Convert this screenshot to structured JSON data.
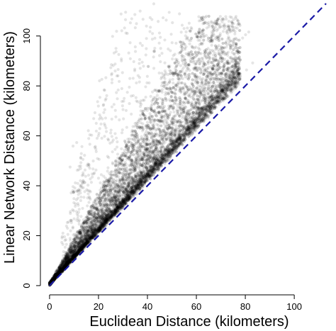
{
  "chart_data": {
    "type": "scatter",
    "title": "",
    "xlabel": "Euclidean Distance (kilometers)",
    "ylabel": "Linear Network Distance (kilometers)",
    "xlim": [
      -2,
      113
    ],
    "ylim": [
      -2,
      113
    ],
    "x_ticks": [
      0,
      20,
      40,
      60,
      80,
      100
    ],
    "y_ticks": [
      0,
      20,
      40,
      60,
      80,
      100
    ],
    "grid": false,
    "legend": "none",
    "point_color": "#000000",
    "point_opacity": 0.1,
    "reference_line": {
      "label": "y = x",
      "color": "#1a1aa6",
      "style": "dashed",
      "from": [
        0,
        0
      ],
      "to": [
        113,
        113
      ]
    },
    "series": [
      {
        "points": [
          [
            0.5,
            0.8
          ],
          [
            1.2,
            1.6
          ],
          [
            2.0,
            2.5
          ],
          [
            3.1,
            4.0
          ],
          [
            4.0,
            5.2
          ],
          [
            5.0,
            6.1
          ],
          [
            6.2,
            7.9
          ],
          [
            7.0,
            9.5
          ],
          [
            8.3,
            10.2
          ],
          [
            9.1,
            12.0
          ],
          [
            10.0,
            12.8
          ],
          [
            11.5,
            14.6
          ],
          [
            12.2,
            16.8
          ],
          [
            13.8,
            17.5
          ],
          [
            14.5,
            19.9
          ],
          [
            15.6,
            20.4
          ],
          [
            16.3,
            22.8
          ],
          [
            17.9,
            23.1
          ],
          [
            18.4,
            25.6
          ],
          [
            19.7,
            26.2
          ],
          [
            20.3,
            27.5
          ],
          [
            21.5,
            28.9
          ],
          [
            22.1,
            31.2
          ],
          [
            23.6,
            31.8
          ],
          [
            24.2,
            34.1
          ],
          [
            25.5,
            34.9
          ],
          [
            26.1,
            36.8
          ],
          [
            27.8,
            37.5
          ],
          [
            28.3,
            39.9
          ],
          [
            29.6,
            40.1
          ],
          [
            30.2,
            42.0
          ],
          [
            31.4,
            43.6
          ],
          [
            32.7,
            44.2
          ],
          [
            33.1,
            46.5
          ],
          [
            34.8,
            47.1
          ],
          [
            35.2,
            49.0
          ],
          [
            36.6,
            49.8
          ],
          [
            37.3,
            51.9
          ],
          [
            38.9,
            52.4
          ],
          [
            39.5,
            54.3
          ],
          [
            40.1,
            53.6
          ],
          [
            41.7,
            55.4
          ],
          [
            42.3,
            57.2
          ],
          [
            43.9,
            58.1
          ],
          [
            44.6,
            60.0
          ],
          [
            45.2,
            61.3
          ],
          [
            46.8,
            62.2
          ],
          [
            47.4,
            63.9
          ],
          [
            48.1,
            64.8
          ],
          [
            49.7,
            66.1
          ],
          [
            50.3,
            66.9
          ],
          [
            51.6,
            68.3
          ],
          [
            52.2,
            69.8
          ],
          [
            53.9,
            70.4
          ],
          [
            54.5,
            71.9
          ],
          [
            55.1,
            73.0
          ],
          [
            56.7,
            74.1
          ],
          [
            57.3,
            75.8
          ],
          [
            58.8,
            76.3
          ],
          [
            59.4,
            78.0
          ],
          [
            60.2,
            78.9
          ],
          [
            61.6,
            80.1
          ],
          [
            62.3,
            81.4
          ],
          [
            63.8,
            82.6
          ],
          [
            64.4,
            84.0
          ],
          [
            65.9,
            85.2
          ],
          [
            66.5,
            86.3
          ],
          [
            67.1,
            87.9
          ],
          [
            68.6,
            88.5
          ],
          [
            69.3,
            90.1
          ],
          [
            70.4,
            91.0
          ],
          [
            71.8,
            92.6
          ],
          [
            72.5,
            93.1
          ],
          [
            73.9,
            94.8
          ],
          [
            75.0,
            96.0
          ],
          [
            76.3,
            96.9
          ],
          [
            77.6,
            98.4
          ],
          [
            78.9,
            99.2
          ],
          [
            80.1,
            100.5
          ],
          [
            81.4,
            101.6
          ],
          [
            3.0,
            3.6
          ],
          [
            5.5,
            6.5
          ],
          [
            8.0,
            9.2
          ],
          [
            10.5,
            11.9
          ],
          [
            13.0,
            14.6
          ],
          [
            15.5,
            17.2
          ],
          [
            18.0,
            20.1
          ],
          [
            20.5,
            22.6
          ],
          [
            23.0,
            25.4
          ],
          [
            25.5,
            28.0
          ],
          [
            28.0,
            30.6
          ],
          [
            30.5,
            33.3
          ],
          [
            33.0,
            35.9
          ],
          [
            35.5,
            38.6
          ],
          [
            38.0,
            41.1
          ],
          [
            40.5,
            43.9
          ],
          [
            43.0,
            46.5
          ],
          [
            45.5,
            49.1
          ],
          [
            48.0,
            51.9
          ],
          [
            50.5,
            54.5
          ],
          [
            53.0,
            57.2
          ],
          [
            55.5,
            59.8
          ],
          [
            58.0,
            62.6
          ],
          [
            60.5,
            65.1
          ],
          [
            63.0,
            67.9
          ],
          [
            65.5,
            70.5
          ],
          [
            68.0,
            73.2
          ],
          [
            70.5,
            75.8
          ],
          [
            73.0,
            78.6
          ],
          [
            75.5,
            81.1
          ],
          [
            78.0,
            83.9
          ],
          [
            80.5,
            86.4
          ],
          [
            83.0,
            89.2
          ],
          [
            4.0,
            7.5
          ],
          [
            6.0,
            11.0
          ],
          [
            8.0,
            14.2
          ],
          [
            10.0,
            18.5
          ],
          [
            12.0,
            21.9
          ],
          [
            14.0,
            25.1
          ],
          [
            16.0,
            28.8
          ],
          [
            18.0,
            31.5
          ],
          [
            20.0,
            35.2
          ],
          [
            22.0,
            38.1
          ],
          [
            24.0,
            41.6
          ],
          [
            26.0,
            44.3
          ],
          [
            28.0,
            47.9
          ],
          [
            30.0,
            50.2
          ],
          [
            32.0,
            53.8
          ],
          [
            34.0,
            56.1
          ],
          [
            36.0,
            59.7
          ],
          [
            38.0,
            62.0
          ],
          [
            40.0,
            65.4
          ],
          [
            42.0,
            67.8
          ],
          [
            44.0,
            71.2
          ],
          [
            46.0,
            73.5
          ],
          [
            48.0,
            76.9
          ],
          [
            5.0,
            9.0
          ],
          [
            9.0,
            13.5
          ],
          [
            13.0,
            18.0
          ],
          [
            17.0,
            23.5
          ],
          [
            21.0,
            28.0
          ],
          [
            25.0,
            33.5
          ],
          [
            29.0,
            38.0
          ],
          [
            33.0,
            43.5
          ],
          [
            37.0,
            48.0
          ],
          [
            41.0,
            53.5
          ],
          [
            45.0,
            58.0
          ],
          [
            49.0,
            63.5
          ],
          [
            53.0,
            68.0
          ],
          [
            57.0,
            73.5
          ],
          [
            61.0,
            78.0
          ],
          [
            65.0,
            83.5
          ],
          [
            69.0,
            88.0
          ],
          [
            73.0,
            93.5
          ],
          [
            7.5,
            20.5
          ],
          [
            9.0,
            26.0
          ],
          [
            10.5,
            31.8
          ],
          [
            11.8,
            36.5
          ],
          [
            12.6,
            42.0
          ],
          [
            8.4,
            47.5
          ],
          [
            9.6,
            55.9
          ],
          [
            14.3,
            52.2
          ],
          [
            16.0,
            48.6
          ],
          [
            18.5,
            55.4
          ],
          [
            20.2,
            61.0
          ],
          [
            22.4,
            64.8
          ],
          [
            24.1,
            58.3
          ],
          [
            26.9,
            70.2
          ],
          [
            28.5,
            66.4
          ],
          [
            30.3,
            73.9
          ],
          [
            32.6,
            79.5
          ],
          [
            34.2,
            76.1
          ],
          [
            36.8,
            83.4
          ],
          [
            38.4,
            87.9
          ],
          [
            40.7,
            81.2
          ],
          [
            42.5,
            91.6
          ],
          [
            35.1,
            93.8
          ],
          [
            37.9,
            96.2
          ],
          [
            39.6,
            99.0
          ],
          [
            41.2,
            103.5
          ],
          [
            43.0,
            95.1
          ],
          [
            45.3,
            89.7
          ],
          [
            47.1,
            98.4
          ],
          [
            49.5,
            85.9
          ],
          [
            51.2,
            92.7
          ],
          [
            53.6,
            88.1
          ],
          [
            55.0,
            96.8
          ],
          [
            11.1,
            57.3
          ],
          [
            12.7,
            46.9
          ],
          [
            15.2,
            38.4
          ],
          [
            17.4,
            44.7
          ],
          [
            19.6,
            50.9
          ],
          [
            21.8,
            40.3
          ],
          [
            23.9,
            47.2
          ],
          [
            25.7,
            53.6
          ],
          [
            27.3,
            59.1
          ],
          [
            29.8,
            62.4
          ],
          [
            31.5,
            55.8
          ],
          [
            33.4,
            68.7
          ],
          [
            35.6,
            64.2
          ],
          [
            37.1,
            71.8
          ],
          [
            39.3,
            75.5
          ],
          [
            41.9,
            72.6
          ],
          [
            43.8,
            78.3
          ],
          [
            45.6,
            82.9
          ],
          [
            47.9,
            80.4
          ],
          [
            49.1,
            86.2
          ],
          [
            51.8,
            84.7
          ],
          [
            54.2,
            90.3
          ],
          [
            56.9,
            92.1
          ],
          [
            58.3,
            95.6
          ],
          [
            60.7,
            98.3
          ],
          [
            62.5,
            100.9
          ],
          [
            64.3,
            103.2
          ],
          [
            66.1,
            105.8
          ],
          [
            42.6,
            112.9
          ],
          [
            38.2,
            106.7
          ],
          [
            44.9,
            101.2
          ],
          [
            46.4,
            107.3
          ],
          [
            20.9,
            67.5
          ]
        ]
      }
    ]
  }
}
